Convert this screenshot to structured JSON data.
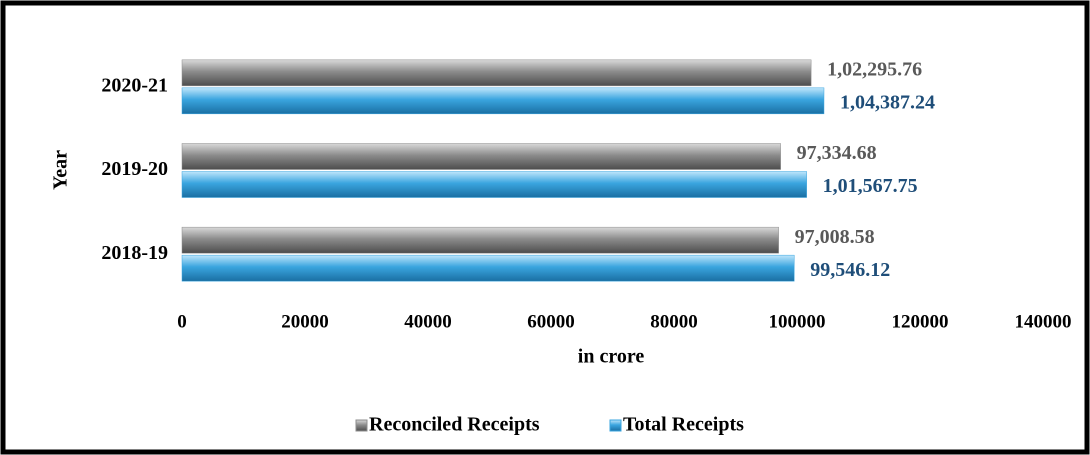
{
  "chart_data": {
    "type": "hbar",
    "categories": [
      "2018-19",
      "2019-20",
      "2020-21"
    ],
    "series": [
      {
        "name": "Reconciled Receipts",
        "color": "#8c8c8c",
        "label_color": "#595959",
        "values": [
          97008.58,
          97334.68,
          102295.76
        ],
        "value_labels": [
          "97,008.58",
          "97,334.68",
          "1,02,295.76"
        ]
      },
      {
        "name": "Total Receipts",
        "color": "#3aa5df",
        "label_color": "#1f4e79",
        "values": [
          99546.12,
          101567.75,
          104387.24
        ],
        "value_labels": [
          "99,546.12",
          "1,01,567.75",
          "1,04,387.24"
        ]
      }
    ],
    "xlim": [
      0,
      140000
    ],
    "xticks": [
      0,
      20000,
      40000,
      60000,
      80000,
      100000,
      120000,
      140000
    ],
    "xlabel": "in crore",
    "ylabel": "Year",
    "legend": "bottom",
    "grid": false
  }
}
